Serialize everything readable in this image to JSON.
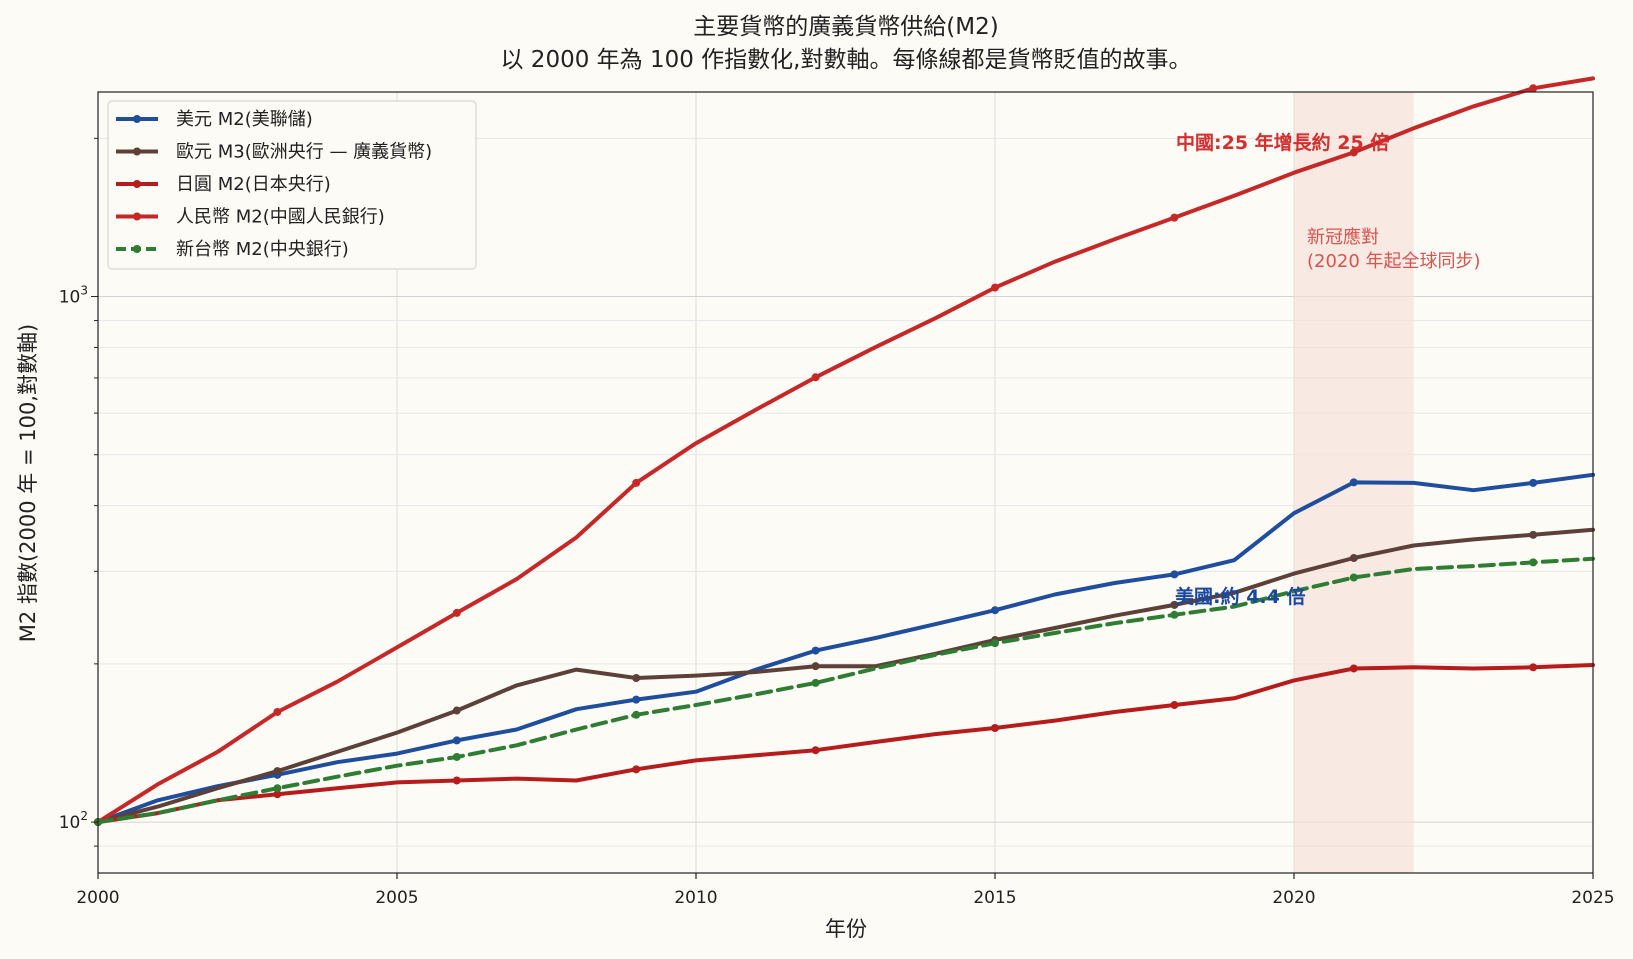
{
  "title": {
    "line1": "主要貨幣的廣義貨幣供給(M2)",
    "line2": "以 2000 年為 100 作指數化,對數軸。每條線都是貨幣貶值的故事。"
  },
  "axes": {
    "xlabel": "年份",
    "ylabel": "M2 指數(2000 年 = 100,對數軸)",
    "xlim": [
      2000,
      2025
    ],
    "ylim": [
      80,
      2450
    ],
    "yscale": "log",
    "xticks": [
      2000,
      2005,
      2010,
      2015,
      2020,
      2025
    ],
    "yticks": [
      {
        "value": 100,
        "base": "10",
        "exp": "2"
      },
      {
        "value": 1000,
        "base": "10",
        "exp": "3"
      }
    ],
    "grid": true
  },
  "legend": {
    "placement": "top-left"
  },
  "colors": {
    "usd": "#1f4e9e",
    "eur": "#5d4037",
    "jpy": "#b71c1c",
    "cny": "#c62828",
    "twd": "#2e7d32",
    "shade": "#f5ddd5",
    "background": "#fcfbf6"
  },
  "chart_data": {
    "type": "line",
    "x": [
      2000,
      2001,
      2002,
      2003,
      2004,
      2005,
      2006,
      2007,
      2008,
      2009,
      2010,
      2011,
      2012,
      2013,
      2014,
      2015,
      2016,
      2017,
      2018,
      2019,
      2020,
      2021,
      2022,
      2023,
      2024,
      2025
    ],
    "series": [
      {
        "name": "美元 M2(美聯儲)",
        "color": "#1f4e9e",
        "style": "solid",
        "values": [
          100,
          110,
          117,
          123,
          130,
          135,
          143,
          150,
          164,
          171,
          177,
          195,
          212,
          224,
          238,
          253,
          271,
          285,
          296,
          315,
          387,
          443,
          442,
          428,
          442,
          458
        ]
      },
      {
        "name": "歐元 M3(歐洲央行 — 廣義貨幣)",
        "color": "#5d4037",
        "style": "solid",
        "values": [
          100,
          107,
          116,
          125,
          136,
          148,
          163,
          182,
          195,
          188,
          190,
          193,
          198,
          198,
          209,
          222,
          234,
          247,
          259,
          273,
          297,
          318,
          336,
          345,
          352,
          360
        ]
      },
      {
        "name": "日圓 M2(日本央行)",
        "color": "#b71c1c",
        "style": "solid",
        "values": [
          100,
          104,
          110,
          113,
          116,
          119,
          120,
          121,
          120,
          126,
          131,
          134,
          137,
          142,
          147,
          151,
          156,
          162,
          167,
          172,
          186,
          196,
          197,
          196,
          197,
          199
        ]
      },
      {
        "name": "人民幣 M2(中國人民銀行)",
        "color": "#c62828",
        "style": "solid",
        "values": [
          100,
          118,
          136,
          162,
          185,
          215,
          250,
          290,
          348,
          442,
          526,
          609,
          702,
          801,
          909,
          1040,
          1165,
          1285,
          1413,
          1555,
          1720,
          1880,
          2090,
          2300,
          2490,
          2600
        ]
      },
      {
        "name": "新台幣 M2(中央銀行)",
        "color": "#2e7d32",
        "style": "dashed",
        "values": [
          100,
          104,
          110,
          116,
          122,
          128,
          133,
          140,
          150,
          160,
          167,
          175,
          184,
          196,
          208,
          219,
          229,
          239,
          248,
          257,
          275,
          292,
          303,
          307,
          312,
          317
        ]
      }
    ],
    "marker_years": [
      2000,
      2003,
      2006,
      2009,
      2012,
      2015,
      2018,
      2021,
      2024
    ],
    "shaded_span": {
      "x": [
        2020,
        2022
      ],
      "label_line1": "新冠應對",
      "label_line2": "(2020 年起全球同步)"
    },
    "annotations": [
      {
        "text": "中國:25 年增長約 25 倍",
        "color": "#d32f2f"
      },
      {
        "text": "美國:約 4.4 倍",
        "color": "#1a47a0"
      }
    ]
  }
}
